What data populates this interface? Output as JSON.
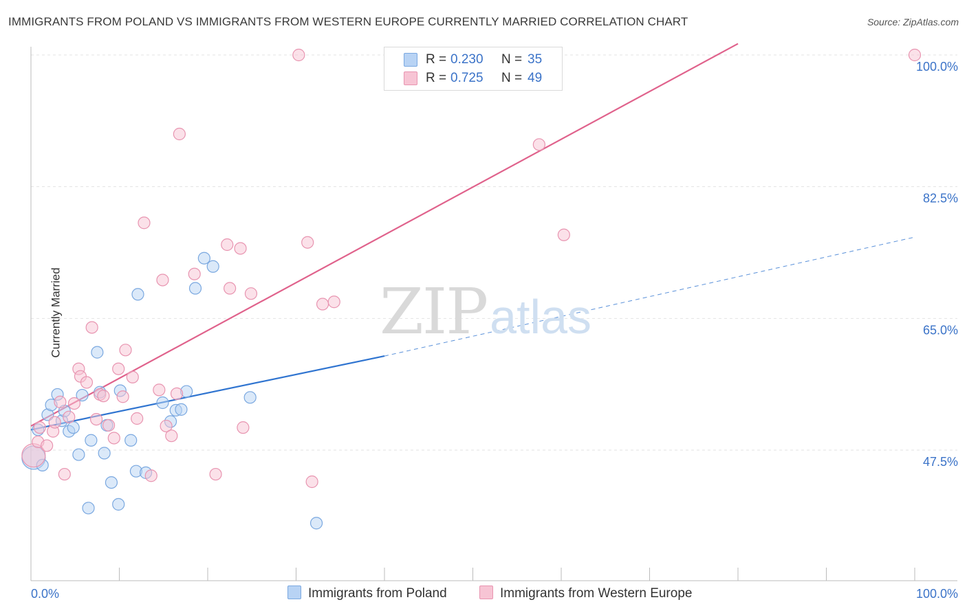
{
  "title": "IMMIGRANTS FROM POLAND VS IMMIGRANTS FROM WESTERN EUROPE CURRENTLY MARRIED CORRELATION CHART",
  "source": "Source: ZipAtlas.com",
  "watermark": {
    "zip": "ZIP",
    "atlas": "atlas"
  },
  "legend_top": {
    "series1": {
      "r_label": "R =",
      "r_value": "0.230",
      "n_label": "N =",
      "n_value": "35"
    },
    "series2": {
      "r_label": "R =",
      "r_value": "0.725",
      "n_label": "N =",
      "n_value": "49"
    }
  },
  "legend_bottom": {
    "series1": "Immigrants from Poland",
    "series2": "Immigrants from Western Europe"
  },
  "colors": {
    "poland_fill": "#b8d3f4",
    "poland_stroke": "#7aa8e0",
    "poland_line": "#2f74d0",
    "we_fill": "#f7c4d4",
    "we_stroke": "#e894b0",
    "we_line": "#e0628c",
    "tick_label": "#3b73c8",
    "grid": "#e3e3e3"
  },
  "chart_data": {
    "type": "scatter",
    "title": "IMMIGRANTS FROM POLAND VS IMMIGRANTS FROM WESTERN EUROPE CURRENTLY MARRIED CORRELATION CHART",
    "xlabel": "",
    "ylabel": "Currently Married",
    "xlim": [
      0,
      100
    ],
    "ylim": [
      30,
      101.5
    ],
    "x_tick_labels": [
      "0.0%",
      "100.0%"
    ],
    "y_ticks": [
      47.5,
      65.0,
      82.5,
      100.0
    ],
    "y_tick_labels": [
      "47.5%",
      "65.0%",
      "82.5%",
      "100.0%"
    ],
    "grid": true,
    "legend_position": "top-center",
    "series": [
      {
        "name": "Immigrants from Poland",
        "R": 0.23,
        "N": 35,
        "trend": {
          "x": [
            0,
            40
          ],
          "y": [
            50.2,
            60.0
          ],
          "dashed_extension_to": [
            100,
            75.8
          ]
        },
        "points": [
          {
            "x": 0.3,
            "y": 46.5,
            "big": true
          },
          {
            "x": 0.8,
            "y": 50.2
          },
          {
            "x": 1.3,
            "y": 45.5
          },
          {
            "x": 1.9,
            "y": 52.2
          },
          {
            "x": 2.3,
            "y": 53.5
          },
          {
            "x": 3.0,
            "y": 54.9
          },
          {
            "x": 3.5,
            "y": 51.4
          },
          {
            "x": 3.8,
            "y": 52.7
          },
          {
            "x": 4.3,
            "y": 50.0
          },
          {
            "x": 4.8,
            "y": 50.5
          },
          {
            "x": 5.4,
            "y": 46.9
          },
          {
            "x": 5.8,
            "y": 54.8
          },
          {
            "x": 6.5,
            "y": 39.8
          },
          {
            "x": 6.8,
            "y": 48.8
          },
          {
            "x": 7.5,
            "y": 60.5
          },
          {
            "x": 7.8,
            "y": 55.2
          },
          {
            "x": 8.3,
            "y": 47.1
          },
          {
            "x": 8.6,
            "y": 50.8
          },
          {
            "x": 9.1,
            "y": 43.2
          },
          {
            "x": 9.9,
            "y": 40.3
          },
          {
            "x": 10.1,
            "y": 55.4
          },
          {
            "x": 11.3,
            "y": 48.8
          },
          {
            "x": 11.9,
            "y": 44.7
          },
          {
            "x": 12.1,
            "y": 68.2
          },
          {
            "x": 13.0,
            "y": 44.5
          },
          {
            "x": 14.9,
            "y": 53.8
          },
          {
            "x": 15.8,
            "y": 51.3
          },
          {
            "x": 16.4,
            "y": 52.8
          },
          {
            "x": 17.0,
            "y": 52.9
          },
          {
            "x": 17.6,
            "y": 55.3
          },
          {
            "x": 18.6,
            "y": 69.0
          },
          {
            "x": 19.6,
            "y": 73.0
          },
          {
            "x": 20.6,
            "y": 71.9
          },
          {
            "x": 24.8,
            "y": 54.5
          },
          {
            "x": 32.3,
            "y": 37.8
          }
        ]
      },
      {
        "name": "Immigrants from Western Europe",
        "R": 0.725,
        "N": 49,
        "trend": {
          "x": [
            0,
            80
          ],
          "y": [
            50.7,
            101.5
          ]
        },
        "points": [
          {
            "x": 0.3,
            "y": 46.8,
            "big": true
          },
          {
            "x": 0.8,
            "y": 48.6
          },
          {
            "x": 1.0,
            "y": 50.5
          },
          {
            "x": 1.8,
            "y": 48.1
          },
          {
            "x": 2.5,
            "y": 50.0
          },
          {
            "x": 2.7,
            "y": 51.2
          },
          {
            "x": 3.3,
            "y": 53.9
          },
          {
            "x": 3.8,
            "y": 44.3
          },
          {
            "x": 4.3,
            "y": 51.9
          },
          {
            "x": 4.9,
            "y": 53.7
          },
          {
            "x": 5.4,
            "y": 58.3
          },
          {
            "x": 5.6,
            "y": 57.3
          },
          {
            "x": 6.3,
            "y": 56.5
          },
          {
            "x": 6.9,
            "y": 63.8
          },
          {
            "x": 7.4,
            "y": 51.6
          },
          {
            "x": 7.8,
            "y": 54.9
          },
          {
            "x": 8.2,
            "y": 54.7
          },
          {
            "x": 8.8,
            "y": 50.8
          },
          {
            "x": 9.4,
            "y": 49.1
          },
          {
            "x": 9.9,
            "y": 58.3
          },
          {
            "x": 10.4,
            "y": 54.6
          },
          {
            "x": 10.7,
            "y": 60.8
          },
          {
            "x": 11.5,
            "y": 57.2
          },
          {
            "x": 12.0,
            "y": 51.7
          },
          {
            "x": 12.8,
            "y": 77.7
          },
          {
            "x": 13.6,
            "y": 44.1
          },
          {
            "x": 14.5,
            "y": 55.5
          },
          {
            "x": 14.9,
            "y": 70.1
          },
          {
            "x": 15.3,
            "y": 50.7
          },
          {
            "x": 15.9,
            "y": 49.4
          },
          {
            "x": 16.5,
            "y": 55.0
          },
          {
            "x": 16.8,
            "y": 89.5
          },
          {
            "x": 18.5,
            "y": 70.9
          },
          {
            "x": 20.9,
            "y": 44.3
          },
          {
            "x": 22.2,
            "y": 74.8
          },
          {
            "x": 22.5,
            "y": 69.0
          },
          {
            "x": 23.7,
            "y": 74.3
          },
          {
            "x": 24.0,
            "y": 50.5
          },
          {
            "x": 24.9,
            "y": 68.3
          },
          {
            "x": 30.3,
            "y": 100.0
          },
          {
            "x": 31.3,
            "y": 75.1
          },
          {
            "x": 31.8,
            "y": 43.3
          },
          {
            "x": 33.0,
            "y": 66.9
          },
          {
            "x": 34.3,
            "y": 67.2
          },
          {
            "x": 48.1,
            "y": 100.0
          },
          {
            "x": 57.5,
            "y": 88.1
          },
          {
            "x": 60.3,
            "y": 76.1
          },
          {
            "x": 100.0,
            "y": 100.0
          },
          {
            "x": 12.6,
            "y": 30.0,
            "hidden": true
          }
        ]
      }
    ]
  }
}
